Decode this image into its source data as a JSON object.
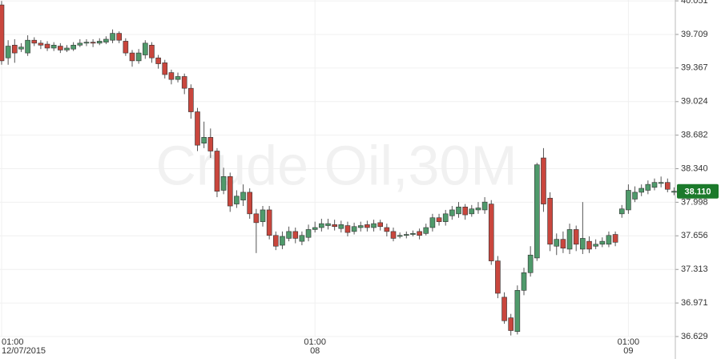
{
  "chart_data": {
    "type": "candlestick",
    "watermark": "Crude Oil,30M",
    "open": [
      40.01,
      39.47,
      39.6,
      39.56,
      39.52,
      39.65,
      39.62,
      39.61,
      39.57,
      39.59,
      39.55,
      39.56,
      39.6,
      39.62,
      39.63,
      39.62,
      39.63,
      39.65,
      39.72,
      39.64,
      39.52,
      39.44,
      39.5,
      39.6,
      39.47,
      39.42,
      39.32,
      39.25,
      39.28,
      39.16,
      38.92,
      38.6,
      38.66,
      38.52,
      38.12,
      38.26,
      37.98,
      38.02,
      38.1,
      37.88,
      37.8,
      37.92,
      37.66,
      37.56,
      37.63,
      37.7,
      37.6,
      37.64,
      37.72,
      37.74,
      37.76,
      37.77,
      37.73,
      37.76,
      37.7,
      37.74,
      37.77,
      37.74,
      37.79,
      37.74,
      37.7,
      37.65,
      37.66,
      37.67,
      37.7,
      37.68,
      37.74,
      37.84,
      37.8,
      37.86,
      37.88,
      37.95,
      37.88,
      37.92,
      37.92,
      37.98,
      37.4,
      37.03,
      36.82,
      36.68,
      37.1,
      37.28,
      37.43,
      38.45,
      38.04,
      37.55,
      37.62,
      37.52,
      37.72,
      37.52,
      37.6,
      37.55,
      37.57,
      37.57,
      37.67,
      37.88,
      37.92,
      38.03,
      38.1,
      38.12,
      38.15,
      38.19,
      38.2,
      38.1
    ],
    "high": [
      40.05,
      39.65,
      39.66,
      39.62,
      39.7,
      39.68,
      39.65,
      39.64,
      39.63,
      39.62,
      39.6,
      39.63,
      39.66,
      39.66,
      39.66,
      39.67,
      39.69,
      39.76,
      39.74,
      39.67,
      39.55,
      39.56,
      39.65,
      39.63,
      39.5,
      39.45,
      39.35,
      39.32,
      39.31,
      39.2,
      38.96,
      38.82,
      38.75,
      38.55,
      38.35,
      38.3,
      38.12,
      38.18,
      38.14,
      37.93,
      37.96,
      37.96,
      37.7,
      37.7,
      37.75,
      37.74,
      37.7,
      37.77,
      37.8,
      37.83,
      37.83,
      37.82,
      37.81,
      37.8,
      37.79,
      37.8,
      37.81,
      37.82,
      37.82,
      37.78,
      37.74,
      37.69,
      37.7,
      37.71,
      37.73,
      37.78,
      37.88,
      37.88,
      37.92,
      37.96,
      38.0,
      37.98,
      37.97,
      38.0,
      38.05,
      38.02,
      37.45,
      37.08,
      36.86,
      37.15,
      37.33,
      37.55,
      38.4,
      38.55,
      38.1,
      37.68,
      37.7,
      37.78,
      37.76,
      38.0,
      37.65,
      37.62,
      37.64,
      37.7,
      37.7,
      37.97,
      38.18,
      38.16,
      38.18,
      38.22,
      38.24,
      38.26,
      38.24,
      38.15
    ],
    "low": [
      39.4,
      39.4,
      39.42,
      39.53,
      39.49,
      39.59,
      39.56,
      39.54,
      39.54,
      39.52,
      39.53,
      39.54,
      39.58,
      39.59,
      39.58,
      39.6,
      39.61,
      39.62,
      39.62,
      39.49,
      39.38,
      39.41,
      39.46,
      39.42,
      39.36,
      39.26,
      39.2,
      39.22,
      39.1,
      38.85,
      38.52,
      38.55,
      38.45,
      38.05,
      38.08,
      37.9,
      37.94,
      37.96,
      37.83,
      37.48,
      37.75,
      37.62,
      37.51,
      37.52,
      37.6,
      37.58,
      37.56,
      37.6,
      37.69,
      37.7,
      37.72,
      37.71,
      37.69,
      37.65,
      37.67,
      37.7,
      37.7,
      37.7,
      37.71,
      37.65,
      37.6,
      37.63,
      37.63,
      37.65,
      37.62,
      37.66,
      37.7,
      37.76,
      37.76,
      37.82,
      37.84,
      37.82,
      37.85,
      37.88,
      37.88,
      37.36,
      37.02,
      36.76,
      36.64,
      36.65,
      37.05,
      37.24,
      37.4,
      37.9,
      37.5,
      37.46,
      37.48,
      37.47,
      37.5,
      37.47,
      37.48,
      37.52,
      37.54,
      37.54,
      37.55,
      37.84,
      37.88,
      38.0,
      38.06,
      38.08,
      38.12,
      38.15,
      38.1,
      38.07
    ],
    "close": [
      39.44,
      39.59,
      39.52,
      39.58,
      39.65,
      39.62,
      39.6,
      39.57,
      39.6,
      39.55,
      39.57,
      39.6,
      39.62,
      39.63,
      39.62,
      39.64,
      39.66,
      39.72,
      39.65,
      39.52,
      39.44,
      39.52,
      39.62,
      39.47,
      39.41,
      39.3,
      39.25,
      39.28,
      39.16,
      38.92,
      38.58,
      38.66,
      38.52,
      38.11,
      38.26,
      37.96,
      38.06,
      38.1,
      37.88,
      37.79,
      37.92,
      37.66,
      37.55,
      37.65,
      37.7,
      37.63,
      37.66,
      37.72,
      37.74,
      37.78,
      37.78,
      37.75,
      37.77,
      37.69,
      37.75,
      37.76,
      37.74,
      37.78,
      37.75,
      37.7,
      37.63,
      37.66,
      37.67,
      37.68,
      37.66,
      37.74,
      37.84,
      37.8,
      37.88,
      37.92,
      37.95,
      37.87,
      37.93,
      37.94,
      38.0,
      37.4,
      37.07,
      36.79,
      36.69,
      37.1,
      37.28,
      37.46,
      38.38,
      37.98,
      37.57,
      37.62,
      37.53,
      37.72,
      37.57,
      37.63,
      37.52,
      37.57,
      37.6,
      37.66,
      37.59,
      37.93,
      38.12,
      38.1,
      38.14,
      38.18,
      38.2,
      38.2,
      38.13,
      38.11
    ],
    "up_color": "#4f9a6b",
    "down_color": "#c9463d",
    "ylim": [
      36.4,
      40.06
    ],
    "yticks": [
      40.051,
      39.709,
      39.367,
      39.024,
      38.682,
      {
        "value": 38.34,
        "label": "38.340"
      },
      37.998,
      37.656,
      37.313,
      36.971,
      36.629
    ],
    "xticks": [
      {
        "value": 0,
        "label": "01:00",
        "date": "12/07/2015"
      },
      {
        "value": 48,
        "label": "01:00",
        "date": "08"
      },
      {
        "value": 96,
        "label": "01:00",
        "date": "09"
      }
    ],
    "last_price": {
      "value": 38.11,
      "label": "38.110"
    },
    "last_price_color": "#1b7a2b",
    "grid": true
  }
}
